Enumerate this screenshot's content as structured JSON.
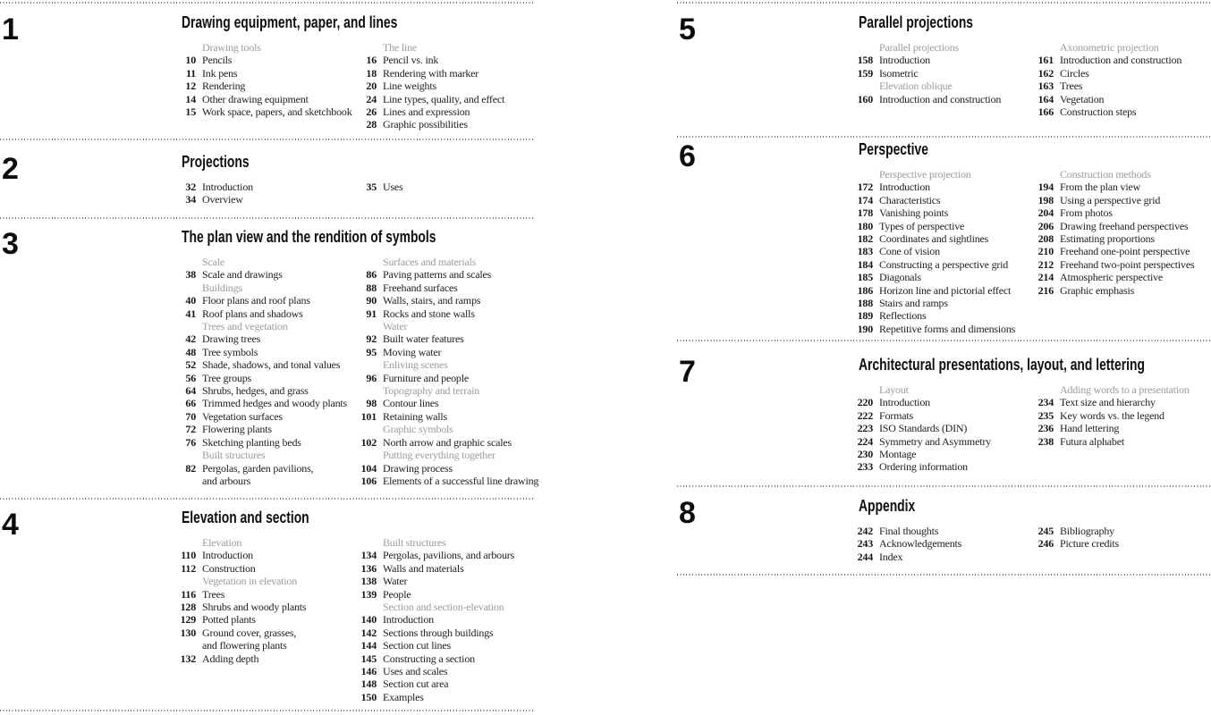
{
  "colors": {
    "background": "#ffffff",
    "text": "#1d1d1d",
    "heading": "#0f0f0f",
    "muted_group_header": "#9b9b9b",
    "dotted_rule": "#767676"
  },
  "sections": [
    {
      "number": "1",
      "title": "Drawing equipment, paper, and lines",
      "columns": [
        [
          {
            "h": "Drawing tools"
          },
          {
            "p": "10",
            "t": "Pencils"
          },
          {
            "p": "11",
            "t": "Ink pens"
          },
          {
            "p": "12",
            "t": "Rendering"
          },
          {
            "p": "14",
            "t": "Other drawing equipment"
          },
          {
            "p": "15",
            "t": "Work space, papers, and sketchbook"
          }
        ],
        [
          {
            "h": "The line"
          },
          {
            "p": "16",
            "t": "Pencil vs. ink"
          },
          {
            "p": "18",
            "t": "Rendering with marker"
          },
          {
            "p": "20",
            "t": "Line weights"
          },
          {
            "p": "24",
            "t": "Line types, quality, and effect"
          },
          {
            "p": "26",
            "t": "Lines and expression"
          },
          {
            "p": "28",
            "t": "Graphic possibilities"
          }
        ]
      ]
    },
    {
      "number": "2",
      "title": "Projections",
      "columns": [
        [
          {
            "p": "32",
            "t": "Introduction"
          },
          {
            "p": "34",
            "t": "Overview"
          }
        ],
        [
          {
            "p": "35",
            "t": "Uses"
          }
        ]
      ]
    },
    {
      "number": "3",
      "title": "The plan view and the rendition of symbols",
      "columns": [
        [
          {
            "h": "Scale"
          },
          {
            "p": "38",
            "t": "Scale and drawings"
          },
          {
            "h": "Buildings"
          },
          {
            "p": "40",
            "t": "Floor plans and roof plans"
          },
          {
            "p": "41",
            "t": "Roof plans and shadows"
          },
          {
            "h": "Trees and vegetation"
          },
          {
            "p": "42",
            "t": "Drawing trees"
          },
          {
            "p": "48",
            "t": "Tree symbols"
          },
          {
            "p": "52",
            "t": "Shade, shadows, and tonal values"
          },
          {
            "p": "56",
            "t": "Tree groups"
          },
          {
            "p": "64",
            "t": "Shrubs, hedges, and grass"
          },
          {
            "p": "66",
            "t": "Trimmed hedges and woody plants"
          },
          {
            "p": "70",
            "t": "Vegetation surfaces"
          },
          {
            "p": "72",
            "t": "Flowering plants"
          },
          {
            "p": "76",
            "t": "Sketching planting beds"
          },
          {
            "h": "Built structures"
          },
          {
            "p": "82",
            "t": "Pergolas, garden pavilions,\nand arbours"
          }
        ],
        [
          {
            "h": "Surfaces and materials"
          },
          {
            "p": "86",
            "t": "Paving patterns and scales"
          },
          {
            "p": "88",
            "t": "Freehand surfaces"
          },
          {
            "p": "90",
            "t": "Walls, stairs, and ramps"
          },
          {
            "p": "91",
            "t": "Rocks and stone walls"
          },
          {
            "h": "Water"
          },
          {
            "p": "92",
            "t": "Built water features"
          },
          {
            "p": "95",
            "t": "Moving water"
          },
          {
            "h": "Enliving scenes"
          },
          {
            "p": "96",
            "t": "Furniture and people"
          },
          {
            "h": "Topography and terrain"
          },
          {
            "p": "98",
            "t": "Contour lines"
          },
          {
            "p": "101",
            "t": "Retaining walls"
          },
          {
            "h": "Graphic symbols"
          },
          {
            "p": "102",
            "t": "North arrow and graphic scales"
          },
          {
            "h": "Putting everything together"
          },
          {
            "p": "104",
            "t": "Drawing process"
          },
          {
            "p": "106",
            "t": "Elements of a successful line drawing"
          }
        ]
      ]
    },
    {
      "number": "4",
      "title": "Elevation and section",
      "columns": [
        [
          {
            "h": "Elevation"
          },
          {
            "p": "110",
            "t": "Introduction"
          },
          {
            "p": "112",
            "t": "Construction"
          },
          {
            "h": "Vegetation in elevation"
          },
          {
            "p": "116",
            "t": "Trees"
          },
          {
            "p": "128",
            "t": "Shrubs and woody plants"
          },
          {
            "p": "129",
            "t": "Potted plants"
          },
          {
            "p": "130",
            "t": "Ground cover, grasses,\nand flowering plants"
          },
          {
            "p": "132",
            "t": "Adding depth"
          }
        ],
        [
          {
            "h": "Built structures"
          },
          {
            "p": "134",
            "t": "Pergolas, pavilions, and arbours"
          },
          {
            "p": "136",
            "t": "Walls and materials"
          },
          {
            "p": "138",
            "t": "Water"
          },
          {
            "p": "139",
            "t": "People"
          },
          {
            "h": "Section and section-elevation"
          },
          {
            "p": "140",
            "t": "Introduction"
          },
          {
            "p": "142",
            "t": "Sections through buildings"
          },
          {
            "p": "144",
            "t": "Section cut lines"
          },
          {
            "p": "145",
            "t": "Constructing a section"
          },
          {
            "p": "146",
            "t": "Uses and scales"
          },
          {
            "p": "148",
            "t": "Section cut area"
          },
          {
            "p": "150",
            "t": "Examples"
          }
        ]
      ]
    },
    {
      "number": "5",
      "title": "Parallel projections",
      "columns": [
        [
          {
            "h": "Parallel projections"
          },
          {
            "p": "158",
            "t": "Introduction"
          },
          {
            "p": "159",
            "t": "Isometric"
          },
          {
            "h": "Elevation oblique"
          },
          {
            "p": "160",
            "t": "Introduction and construction"
          }
        ],
        [
          {
            "h": "Axonometric projection"
          },
          {
            "p": "161",
            "t": "Introduction and construction"
          },
          {
            "p": "162",
            "t": "Circles"
          },
          {
            "p": "163",
            "t": "Trees"
          },
          {
            "p": "164",
            "t": "Vegetation"
          },
          {
            "p": "166",
            "t": "Construction steps"
          }
        ]
      ]
    },
    {
      "number": "6",
      "title": "Perspective",
      "columns": [
        [
          {
            "h": "Perspective projection"
          },
          {
            "p": "172",
            "t": "Introduction"
          },
          {
            "p": "174",
            "t": "Characteristics"
          },
          {
            "p": "178",
            "t": "Vanishing points"
          },
          {
            "p": "180",
            "t": "Types of perspective"
          },
          {
            "p": "182",
            "t": "Coordinates and sightlines"
          },
          {
            "p": "183",
            "t": "Cone of vision"
          },
          {
            "p": "184",
            "t": "Constructing a perspective grid"
          },
          {
            "p": "185",
            "t": "Diagonals"
          },
          {
            "p": "186",
            "t": "Horizon line and pictorial effect"
          },
          {
            "p": "188",
            "t": "Stairs and ramps"
          },
          {
            "p": "189",
            "t": "Reflections"
          },
          {
            "p": "190",
            "t": "Repetitive forms and dimensions"
          }
        ],
        [
          {
            "h": "Construction methods"
          },
          {
            "p": "194",
            "t": "From the plan view"
          },
          {
            "p": "198",
            "t": "Using a perspective grid"
          },
          {
            "p": "204",
            "t": "From photos"
          },
          {
            "p": "206",
            "t": "Drawing freehand perspectives"
          },
          {
            "p": "208",
            "t": "Estimating proportions"
          },
          {
            "p": "210",
            "t": "Freehand one-point perspective"
          },
          {
            "p": "212",
            "t": "Freehand two-point perspectives"
          },
          {
            "p": "214",
            "t": "Atmospheric perspective"
          },
          {
            "p": "216",
            "t": "Graphic emphasis"
          }
        ]
      ]
    },
    {
      "number": "7",
      "title": "Architectural presentations, layout, and lettering",
      "columns": [
        [
          {
            "h": "Layout"
          },
          {
            "p": "220",
            "t": "Introduction"
          },
          {
            "p": "222",
            "t": "Formats"
          },
          {
            "p": "223",
            "t": "ISO Standards (DIN)"
          },
          {
            "p": "224",
            "t": "Symmetry and Asymmetry"
          },
          {
            "p": "230",
            "t": "Montage"
          },
          {
            "p": "233",
            "t": "Ordering information"
          }
        ],
        [
          {
            "h": "Adding words to a presentation"
          },
          {
            "p": "234",
            "t": "Text size and hierarchy"
          },
          {
            "p": "235",
            "t": "Key words vs. the legend"
          },
          {
            "p": "236",
            "t": "Hand lettering"
          },
          {
            "p": "238",
            "t": "Futura alphabet"
          }
        ]
      ]
    },
    {
      "number": "8",
      "title": "Appendix",
      "columns": [
        [
          {
            "p": "242",
            "t": "Final thoughts"
          },
          {
            "p": "243",
            "t": "Acknowledgements"
          },
          {
            "p": "244",
            "t": "Index"
          }
        ],
        [
          {
            "p": "245",
            "t": "Bibliography"
          },
          {
            "p": "246",
            "t": "Picture credits"
          }
        ]
      ]
    }
  ]
}
